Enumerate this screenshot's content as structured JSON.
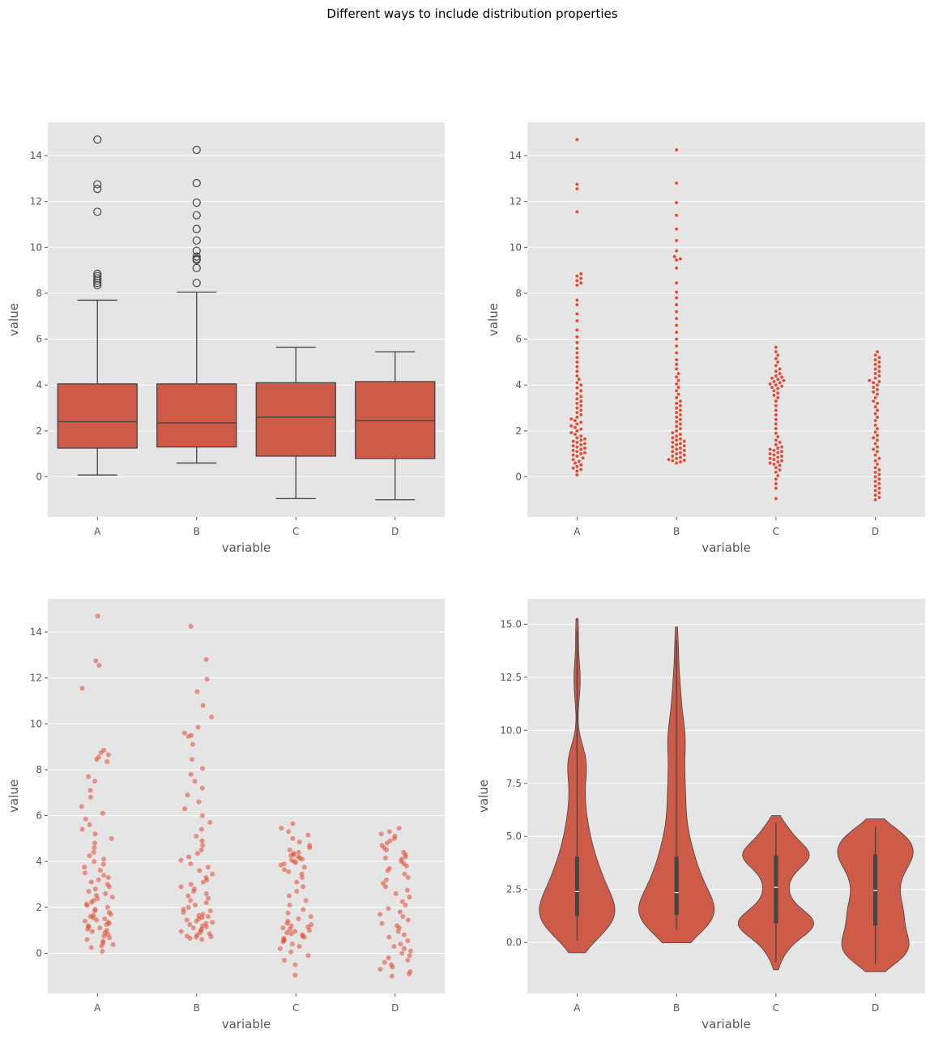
{
  "figure": {
    "title": "Different ways to include distribution properties"
  },
  "colors": {
    "panel_bg": "#e5e5e5",
    "grid": "#ffffff",
    "box_fill": "#cd5b48",
    "point": "#e24a33",
    "line": "#444444",
    "text": "#555555"
  },
  "chart_data": [
    {
      "type": "box",
      "xlabel": "variable",
      "ylabel": "value",
      "categories": [
        "A",
        "B",
        "C",
        "D"
      ],
      "ylim": [
        -1.75,
        15.45
      ],
      "yticks": [
        0,
        2,
        4,
        6,
        8,
        10,
        12,
        14
      ],
      "ytick_labels": [
        "0",
        "2",
        "4",
        "6",
        "8",
        "10",
        "12",
        "14"
      ],
      "grid": true,
      "stats": [
        {
          "whislo": 0.08,
          "q1": 1.25,
          "median": 2.4,
          "q3": 4.05,
          "whishi": 7.7,
          "fliers": [
            8.35,
            8.45,
            8.55,
            8.65,
            8.75,
            8.85,
            11.55,
            12.55,
            12.75,
            14.7
          ]
        },
        {
          "whislo": 0.6,
          "q1": 1.3,
          "median": 2.35,
          "q3": 4.05,
          "whishi": 8.05,
          "fliers": [
            8.45,
            9.1,
            9.45,
            9.5,
            9.6,
            9.85,
            10.3,
            10.8,
            11.4,
            11.95,
            12.8,
            14.25
          ]
        },
        {
          "whislo": -0.95,
          "q1": 0.9,
          "median": 2.6,
          "q3": 4.1,
          "whishi": 5.65,
          "fliers": []
        },
        {
          "whislo": -1.0,
          "q1": 0.8,
          "median": 2.45,
          "q3": 4.15,
          "whishi": 5.45,
          "fliers": []
        }
      ]
    },
    {
      "type": "swarm",
      "xlabel": "variable",
      "ylabel": "value",
      "categories": [
        "A",
        "B",
        "C",
        "D"
      ],
      "ylim": [
        -1.75,
        15.45
      ],
      "yticks": [
        0,
        2,
        4,
        6,
        8,
        10,
        12,
        14
      ],
      "ytick_labels": [
        "0",
        "2",
        "4",
        "6",
        "8",
        "10",
        "12",
        "14"
      ],
      "grid": true
    },
    {
      "type": "strip",
      "xlabel": "variable",
      "ylabel": "value",
      "categories": [
        "A",
        "B",
        "C",
        "D"
      ],
      "ylim": [
        -1.75,
        15.45
      ],
      "yticks": [
        0,
        2,
        4,
        6,
        8,
        10,
        12,
        14
      ],
      "ytick_labels": [
        "0",
        "2",
        "4",
        "6",
        "8",
        "10",
        "12",
        "14"
      ],
      "grid": true
    },
    {
      "type": "violin",
      "xlabel": "variable",
      "ylabel": "value",
      "categories": [
        "A",
        "B",
        "C",
        "D"
      ],
      "ylim": [
        -2.4,
        16.2
      ],
      "yticks": [
        0,
        2.5,
        5,
        7.5,
        10,
        12.5,
        15
      ],
      "ytick_labels": [
        "0.0",
        "2.5",
        "5.0",
        "7.5",
        "10.0",
        "12.5",
        "15.0"
      ],
      "grid": true
    }
  ],
  "samples": {
    "A": [
      0.08,
      0.25,
      0.32,
      0.38,
      0.45,
      0.52,
      0.6,
      0.68,
      0.75,
      0.82,
      0.9,
      0.95,
      1.0,
      1.05,
      1.1,
      1.15,
      1.2,
      1.25,
      1.3,
      1.35,
      1.4,
      1.45,
      1.5,
      1.55,
      1.6,
      1.65,
      1.7,
      1.78,
      1.85,
      1.92,
      2.0,
      2.08,
      2.15,
      2.22,
      2.3,
      2.38,
      2.45,
      2.52,
      2.6,
      2.7,
      2.8,
      2.9,
      3.0,
      3.1,
      3.2,
      3.3,
      3.4,
      3.5,
      3.62,
      3.75,
      3.88,
      4.0,
      4.1,
      4.25,
      4.4,
      4.6,
      4.8,
      5.0,
      5.2,
      5.4,
      5.6,
      5.85,
      6.1,
      6.4,
      6.8,
      7.1,
      7.5,
      7.7,
      8.35,
      8.45,
      8.55,
      8.65,
      8.75,
      8.85,
      11.55,
      12.55,
      12.75,
      14.7
    ],
    "B": [
      0.6,
      0.65,
      0.7,
      0.72,
      0.75,
      0.8,
      0.85,
      0.9,
      0.95,
      1.0,
      1.05,
      1.1,
      1.15,
      1.2,
      1.25,
      1.3,
      1.35,
      1.4,
      1.45,
      1.5,
      1.55,
      1.6,
      1.65,
      1.7,
      1.78,
      1.85,
      1.92,
      2.0,
      2.1,
      2.2,
      2.3,
      2.4,
      2.5,
      2.6,
      2.7,
      2.8,
      2.9,
      3.0,
      3.1,
      3.2,
      3.3,
      3.45,
      3.6,
      3.75,
      3.9,
      4.05,
      4.2,
      4.35,
      4.5,
      4.7,
      4.9,
      5.1,
      5.4,
      5.7,
      6.0,
      6.3,
      6.6,
      6.9,
      7.2,
      7.5,
      7.8,
      8.05,
      8.45,
      9.1,
      9.45,
      9.5,
      9.6,
      9.85,
      10.3,
      10.8,
      11.4,
      11.95,
      12.8,
      14.25
    ],
    "C": [
      -0.95,
      -0.5,
      -0.3,
      -0.1,
      0.05,
      0.2,
      0.3,
      0.4,
      0.5,
      0.55,
      0.6,
      0.65,
      0.7,
      0.75,
      0.8,
      0.85,
      0.9,
      0.95,
      1.0,
      1.05,
      1.1,
      1.15,
      1.2,
      1.25,
      1.3,
      1.4,
      1.5,
      1.6,
      1.75,
      1.9,
      2.1,
      2.3,
      2.5,
      2.7,
      2.9,
      3.1,
      3.3,
      3.45,
      3.55,
      3.65,
      3.75,
      3.85,
      3.9,
      3.95,
      4.0,
      4.05,
      4.1,
      4.15,
      4.2,
      4.25,
      4.3,
      4.35,
      4.4,
      4.5,
      4.6,
      4.7,
      4.85,
      5.0,
      5.15,
      5.3,
      5.45,
      5.65
    ],
    "D": [
      -1.0,
      -0.9,
      -0.8,
      -0.7,
      -0.6,
      -0.5,
      -0.4,
      -0.3,
      -0.2,
      -0.1,
      0.0,
      0.1,
      0.2,
      0.3,
      0.4,
      0.55,
      0.7,
      0.8,
      0.95,
      1.1,
      1.2,
      1.3,
      1.45,
      1.6,
      1.7,
      1.8,
      1.95,
      2.1,
      2.25,
      2.45,
      2.6,
      2.75,
      2.9,
      3.05,
      3.2,
      3.3,
      3.45,
      3.6,
      3.7,
      3.8,
      3.9,
      4.0,
      4.1,
      4.15,
      4.2,
      4.3,
      4.4,
      4.5,
      4.6,
      4.7,
      4.8,
      4.9,
      5.0,
      5.1,
      5.2,
      5.3,
      5.45
    ]
  }
}
